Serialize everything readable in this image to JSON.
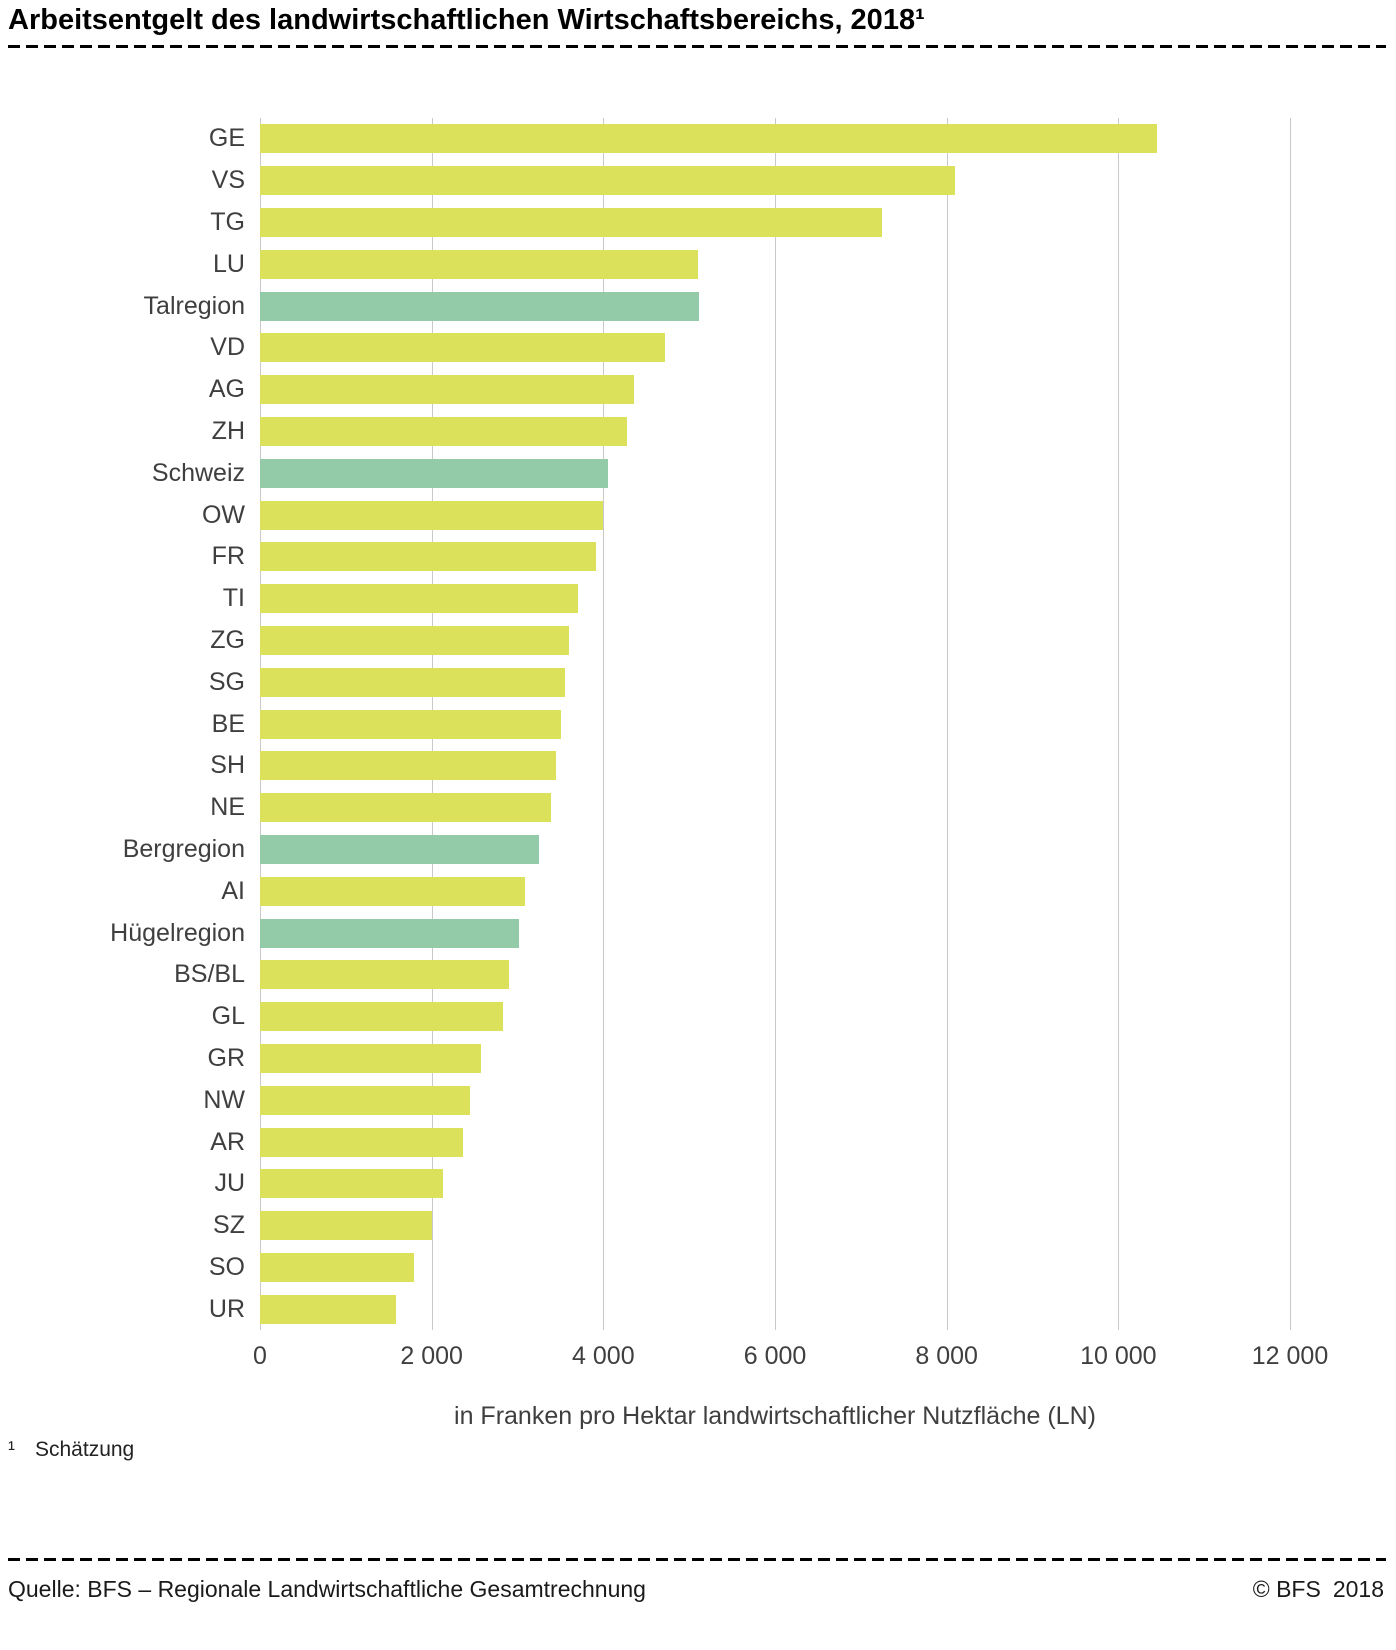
{
  "header": {
    "title": "Arbeitsentgelt des landwirtschaftlichen Wirtschaftsbereichs, 2018¹"
  },
  "chart_data": {
    "type": "bar",
    "orientation": "horizontal",
    "categories": [
      "GE",
      "VS",
      "TG",
      "LU",
      "Talregion",
      "VD",
      "AG",
      "ZH",
      "Schweiz",
      "OW",
      "FR",
      "TI",
      "ZG",
      "SG",
      "BE",
      "SH",
      "NE",
      "Bergregion",
      "AI",
      "Hügelregion",
      "BS/BL",
      "GL",
      "GR",
      "NW",
      "AR",
      "JU",
      "SZ",
      "SO",
      "UR"
    ],
    "values": [
      10450,
      8100,
      7250,
      5100,
      5110,
      4720,
      4360,
      4280,
      4060,
      4000,
      3910,
      3700,
      3600,
      3550,
      3510,
      3450,
      3390,
      3250,
      3090,
      3020,
      2900,
      2830,
      2570,
      2450,
      2360,
      2130,
      2000,
      1790,
      1590
    ],
    "highlight_categories": [
      "Talregion",
      "Schweiz",
      "Bergregion",
      "Hügelregion"
    ],
    "xlabel": "in Franken pro Hektar landwirtschaftlicher Nutzfläche (LN)",
    "xlim": [
      0,
      12000
    ],
    "xticks": [
      0,
      2000,
      4000,
      6000,
      8000,
      10000,
      12000
    ],
    "xtick_labels": [
      "0",
      "2 000",
      "4 000",
      "6 000",
      "8 000",
      "10 000",
      "12 000"
    ],
    "grid": true,
    "legend": "none",
    "colors": {
      "bar": "#dbe15a",
      "highlight": "#93cba8",
      "gridline": "#c9c9c9"
    }
  },
  "footnote": {
    "marker": "¹",
    "text": "Schätzung"
  },
  "footer": {
    "source": "Quelle: BFS – Regionale Landwirtschaftliche Gesamtrechnung",
    "copyright_org": "© BFS",
    "copyright_year": "2018"
  }
}
